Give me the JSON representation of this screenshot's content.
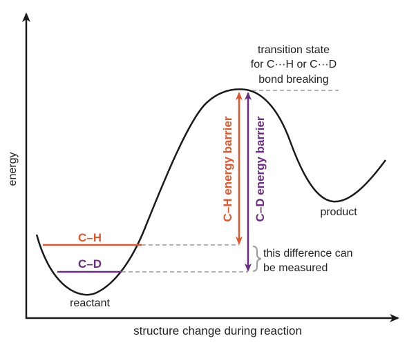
{
  "axes": {
    "y_label": "energy",
    "x_label": "structure change during reaction"
  },
  "transition_state": {
    "line1": "transition state",
    "line2": "for C···H or C···D",
    "line3": "bond breaking"
  },
  "levels": {
    "ch_label": "C–H",
    "cd_label": "C–D"
  },
  "barriers": {
    "ch_label": "C–H energy barrier",
    "cd_label": "C–D energy barrier"
  },
  "difference": {
    "line1": "this difference can",
    "line2": "be measured"
  },
  "points": {
    "reactant": "reactant",
    "product": "product"
  },
  "colors": {
    "ch": "#e0572c",
    "cd": "#6b2c83",
    "curve": "#1a1a1a",
    "dashed": "#9a9a9a"
  }
}
